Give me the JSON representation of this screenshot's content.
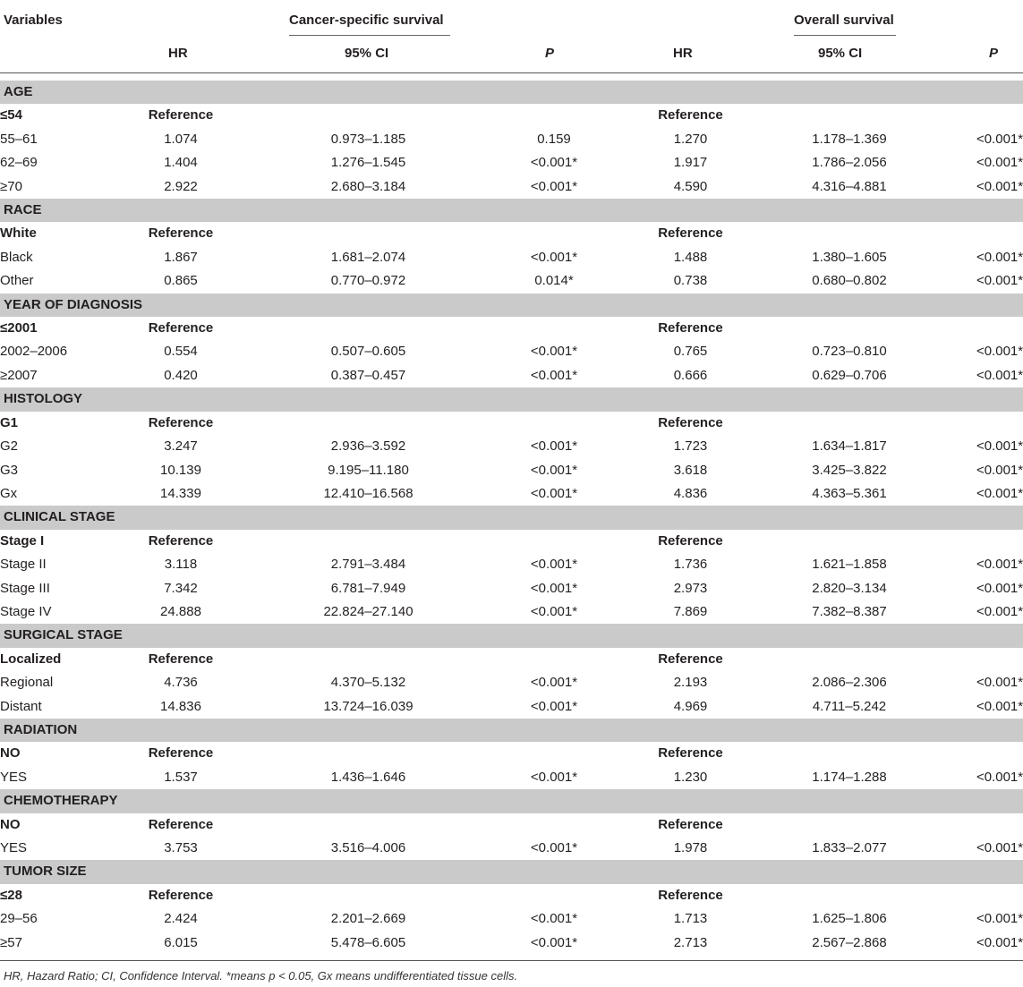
{
  "header": {
    "variables": "Variables",
    "group_css": "Cancer-specific survival",
    "group_os": "Overall survival",
    "cols": [
      "HR",
      "95% CI",
      "P",
      "HR",
      "95% CI",
      "P"
    ]
  },
  "sections": [
    {
      "title": "AGE",
      "rows": [
        {
          "label": "≤54",
          "ref": true,
          "hr1": "Reference",
          "hr2": "Reference"
        },
        {
          "label": "55–61",
          "hr1": "1.074",
          "ci1": "0.973–1.185",
          "p1": "0.159",
          "hr2": "1.270",
          "ci2": "1.178–1.369",
          "p2": "<0.001*"
        },
        {
          "label": "62–69",
          "hr1": "1.404",
          "ci1": "1.276–1.545",
          "p1": "<0.001*",
          "hr2": "1.917",
          "ci2": "1.786–2.056",
          "p2": "<0.001*"
        },
        {
          "label": "≥70",
          "hr1": "2.922",
          "ci1": "2.680–3.184",
          "p1": "<0.001*",
          "hr2": "4.590",
          "ci2": "4.316–4.881",
          "p2": "<0.001*"
        }
      ]
    },
    {
      "title": "RACE",
      "rows": [
        {
          "label": "White",
          "ref": true,
          "hr1": "Reference",
          "hr2": "Reference"
        },
        {
          "label": "Black",
          "hr1": "1.867",
          "ci1": "1.681–2.074",
          "p1": "<0.001*",
          "hr2": "1.488",
          "ci2": "1.380–1.605",
          "p2": "<0.001*"
        },
        {
          "label": "Other",
          "hr1": "0.865",
          "ci1": "0.770–0.972",
          "p1": "0.014*",
          "hr2": "0.738",
          "ci2": "0.680–0.802",
          "p2": "<0.001*"
        }
      ]
    },
    {
      "title": "YEAR OF DIAGNOSIS",
      "rows": [
        {
          "label": "≤2001",
          "ref": true,
          "hr1": "Reference",
          "hr2": "Reference"
        },
        {
          "label": "2002–2006",
          "hr1": "0.554",
          "ci1": "0.507–0.605",
          "p1": "<0.001*",
          "hr2": "0.765",
          "ci2": "0.723–0.810",
          "p2": "<0.001*"
        },
        {
          "label": "≥2007",
          "hr1": "0.420",
          "ci1": "0.387–0.457",
          "p1": "<0.001*",
          "hr2": "0.666",
          "ci2": "0.629–0.706",
          "p2": "<0.001*"
        }
      ]
    },
    {
      "title": "HISTOLOGY",
      "rows": [
        {
          "label": "G1",
          "ref": true,
          "hr1": "Reference",
          "hr2": "Reference"
        },
        {
          "label": "G2",
          "hr1": "3.247",
          "ci1": "2.936–3.592",
          "p1": "<0.001*",
          "hr2": "1.723",
          "ci2": "1.634–1.817",
          "p2": "<0.001*"
        },
        {
          "label": "G3",
          "hr1": "10.139",
          "ci1": "9.195–11.180",
          "p1": "<0.001*",
          "hr2": "3.618",
          "ci2": "3.425–3.822",
          "p2": "<0.001*"
        },
        {
          "label": "Gx",
          "hr1": "14.339",
          "ci1": "12.410–16.568",
          "p1": "<0.001*",
          "hr2": "4.836",
          "ci2": "4.363–5.361",
          "p2": "<0.001*"
        }
      ]
    },
    {
      "title": "CLINICAL STAGE",
      "rows": [
        {
          "label": "Stage I",
          "ref": true,
          "hr1": "Reference",
          "hr2": "Reference"
        },
        {
          "label": "Stage II",
          "hr1": "3.118",
          "ci1": "2.791–3.484",
          "p1": "<0.001*",
          "hr2": "1.736",
          "ci2": "1.621–1.858",
          "p2": "<0.001*"
        },
        {
          "label": "Stage III",
          "hr1": "7.342",
          "ci1": "6.781–7.949",
          "p1": "<0.001*",
          "hr2": "2.973",
          "ci2": "2.820–3.134",
          "p2": "<0.001*"
        },
        {
          "label": "Stage IV",
          "hr1": "24.888",
          "ci1": "22.824–27.140",
          "p1": "<0.001*",
          "hr2": "7.869",
          "ci2": "7.382–8.387",
          "p2": "<0.001*"
        }
      ]
    },
    {
      "title": "SURGICAL STAGE",
      "rows": [
        {
          "label": "Localized",
          "ref": true,
          "hr1": "Reference",
          "hr2": "Reference"
        },
        {
          "label": "Regional",
          "hr1": "4.736",
          "ci1": "4.370–5.132",
          "p1": "<0.001*",
          "hr2": "2.193",
          "ci2": "2.086–2.306",
          "p2": "<0.001*"
        },
        {
          "label": "Distant",
          "hr1": "14.836",
          "ci1": "13.724–16.039",
          "p1": "<0.001*",
          "hr2": "4.969",
          "ci2": "4.711–5.242",
          "p2": "<0.001*"
        }
      ]
    },
    {
      "title": "RADIATION",
      "rows": [
        {
          "label": "NO",
          "ref": true,
          "hr1": "Reference",
          "hr2": "Reference"
        },
        {
          "label": "YES",
          "hr1": "1.537",
          "ci1": "1.436–1.646",
          "p1": "<0.001*",
          "hr2": "1.230",
          "ci2": "1.174–1.288",
          "p2": "<0.001*"
        }
      ]
    },
    {
      "title": "CHEMOTHERAPY",
      "rows": [
        {
          "label": "NO",
          "ref": true,
          "hr1": "Reference",
          "hr2": "Reference"
        },
        {
          "label": "YES",
          "hr1": "3.753",
          "ci1": "3.516–4.006",
          "p1": "<0.001*",
          "hr2": "1.978",
          "ci2": "1.833–2.077",
          "p2": "<0.001*"
        }
      ]
    },
    {
      "title": "TUMOR SIZE",
      "rows": [
        {
          "label": "≤28",
          "ref": true,
          "hr1": "Reference",
          "hr2": "Reference"
        },
        {
          "label": "29–56",
          "hr1": "2.424",
          "ci1": "2.201–2.669",
          "p1": "<0.001*",
          "hr2": "1.713",
          "ci2": "1.625–1.806",
          "p2": "<0.001*"
        },
        {
          "label": "≥57",
          "hr1": "6.015",
          "ci1": "5.478–6.605",
          "p1": "<0.001*",
          "hr2": "2.713",
          "ci2": "2.567–2.868",
          "p2": "<0.001*"
        }
      ]
    }
  ],
  "footnote": "HR, Hazard Ratio; CI, Confidence Interval. *means p < 0.05, Gx means undifferentiated tissue cells."
}
